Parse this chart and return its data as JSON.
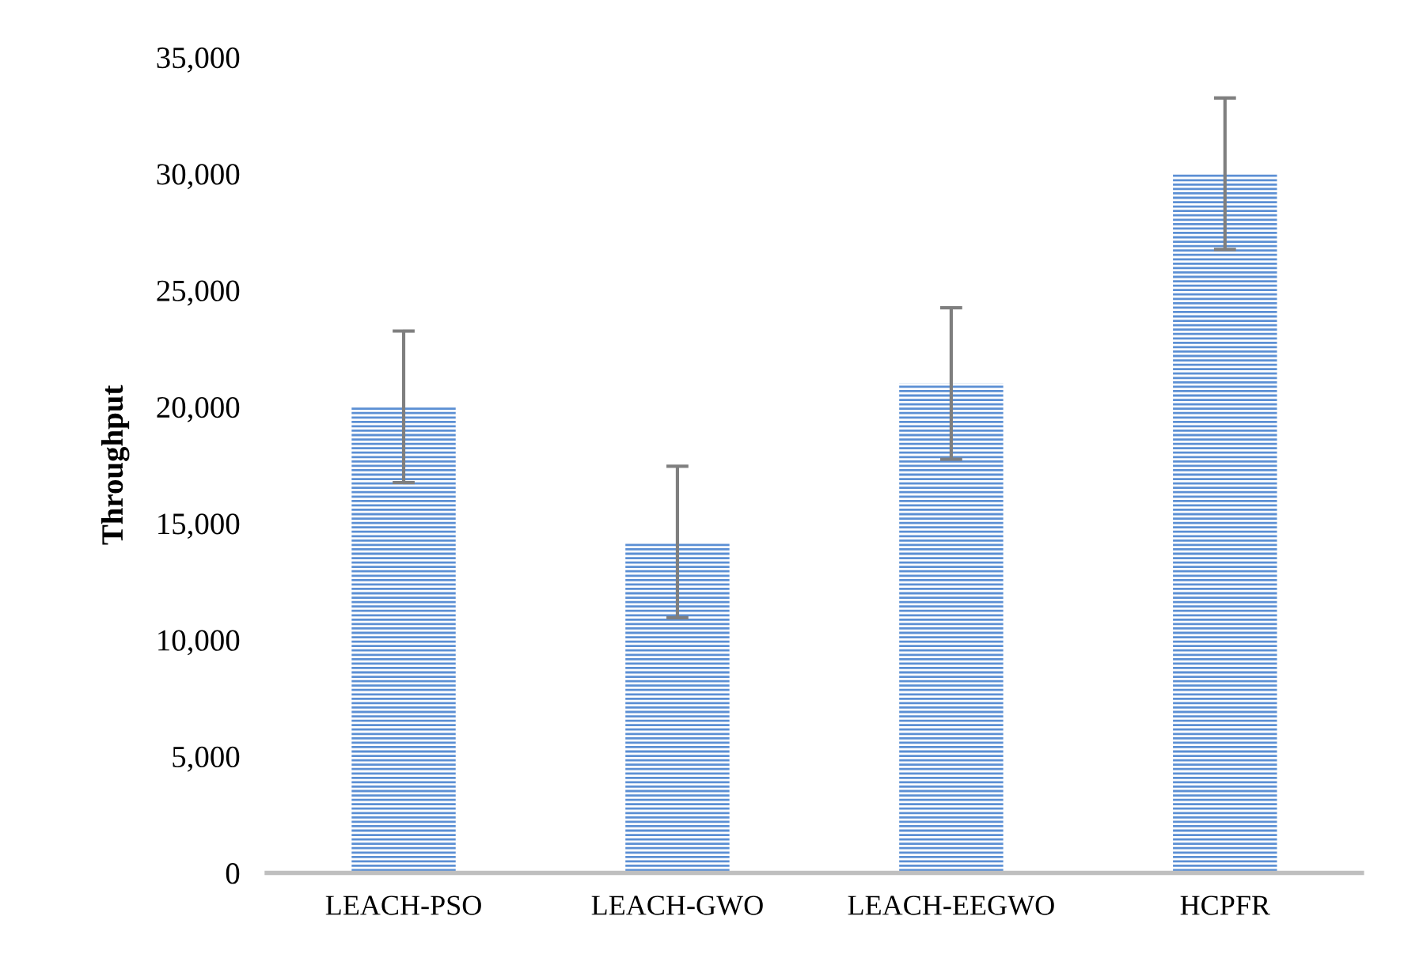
{
  "chart_data": {
    "type": "bar",
    "ylabel": "Throughput",
    "categories": [
      "LEACH-PSO",
      "LEACH-GWO",
      "LEACH-EEGWO",
      "HCPFR"
    ],
    "values": [
      20000,
      14200,
      21000,
      30000
    ],
    "errors": [
      3250,
      3250,
      3250,
      3250
    ],
    "color": "#5b8fd4",
    "ylim": [
      0,
      35000
    ],
    "yticks": [
      {
        "value": 0,
        "label": "0"
      },
      {
        "value": 5000,
        "label": "5,000"
      },
      {
        "value": 10000,
        "label": "10,000"
      },
      {
        "value": 15000,
        "label": "15,000"
      },
      {
        "value": 20000,
        "label": "20,000"
      },
      {
        "value": 25000,
        "label": "25,000"
      },
      {
        "value": 30000,
        "label": "30,000"
      },
      {
        "value": 35000,
        "label": "35,000"
      }
    ],
    "grid": false
  }
}
